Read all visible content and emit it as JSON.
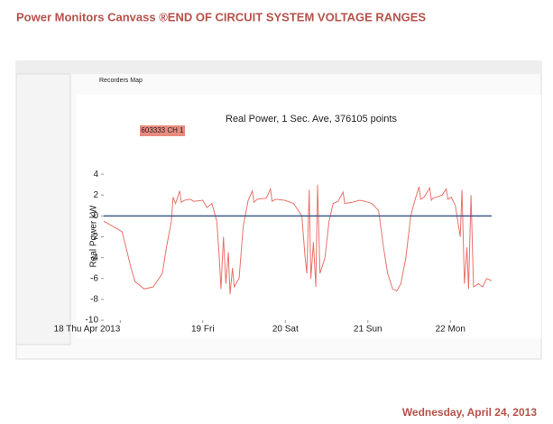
{
  "header": {
    "title": "Power Monitors Canvass ®END OF CIRCUIT SYSTEM VOLTAGE RANGES"
  },
  "footer": {
    "date": "Wednesday, April 24, 2013"
  },
  "app": {
    "tab": "Recorders Map"
  },
  "chart_data": {
    "type": "line",
    "title": "Real Power, 1 Sec. Ave, 376105 points",
    "y_label": "Real Power kW",
    "xlim": [
      17.8,
      22.5
    ],
    "ylim": [
      -10,
      6
    ],
    "xticks": [
      {
        "value": 18,
        "label": "18 Thu Apr 2013"
      },
      {
        "value": 19,
        "label": "19 Fri"
      },
      {
        "value": 20,
        "label": "20 Sat"
      },
      {
        "value": 21,
        "label": "21 Sun"
      },
      {
        "value": 22,
        "label": "22 Mon"
      }
    ],
    "yticks": [
      4,
      2,
      0,
      -2,
      -4,
      -6,
      -8,
      -10
    ],
    "reference_line": {
      "value": 0,
      "color": "#3d5a8a"
    },
    "x": [
      17.8,
      17.91,
      18.02,
      18.07,
      18.13,
      18.18,
      18.29,
      18.4,
      18.51,
      18.56,
      18.62,
      18.64,
      18.67,
      18.72,
      18.74,
      18.78,
      18.85,
      18.89,
      19.0,
      19.05,
      19.11,
      19.17,
      19.2,
      19.22,
      19.25,
      19.28,
      19.31,
      19.33,
      19.36,
      19.38,
      19.44,
      19.49,
      19.55,
      19.6,
      19.62,
      19.66,
      19.77,
      19.82,
      19.84,
      19.88,
      19.99,
      20.1,
      20.2,
      20.24,
      20.26,
      20.29,
      20.31,
      20.34,
      20.37,
      20.39,
      20.42,
      20.48,
      20.53,
      20.58,
      20.64,
      20.7,
      20.72,
      20.81,
      20.9,
      20.97,
      21.05,
      21.13,
      21.19,
      21.24,
      21.3,
      21.35,
      21.4,
      21.46,
      21.52,
      21.57,
      21.62,
      21.64,
      21.68,
      21.75,
      21.77,
      21.79,
      21.9,
      21.95,
      21.97,
      22.01,
      22.06,
      22.12,
      22.14,
      22.17,
      22.2,
      22.22,
      22.25,
      22.28,
      22.34,
      22.39,
      22.44,
      22.5
    ],
    "series": [
      {
        "name": "603333 CH 1",
        "color": "#e8736a",
        "values": [
          -0.5,
          -1,
          -1.5,
          -3,
          -5,
          -6.3,
          -7,
          -6.8,
          -5.5,
          -3,
          -0.5,
          1.8,
          1.2,
          2.4,
          1.3,
          1.5,
          1.6,
          1.4,
          1.5,
          0.8,
          1.2,
          -0.5,
          -4,
          -7,
          -2,
          -6.5,
          -3.5,
          -7.5,
          -5,
          -6.8,
          -6,
          -1,
          1.5,
          2.4,
          1.3,
          1.6,
          1.7,
          2.6,
          1.4,
          1.6,
          1.5,
          1.2,
          0,
          -4,
          -5.5,
          2.5,
          -6,
          -2.5,
          -6.8,
          3,
          -5.5,
          -4,
          -0.5,
          1.2,
          1.4,
          2.3,
          1.2,
          1.3,
          1.5,
          1.4,
          1.2,
          0.5,
          -3,
          -5.5,
          -7,
          -7.2,
          -6.5,
          -4,
          0,
          1.5,
          2.8,
          1.6,
          1.8,
          2.7,
          1.5,
          1.7,
          2,
          2.6,
          1.6,
          1.8,
          1,
          -2,
          2.5,
          -6.5,
          -3,
          -7,
          2,
          -6.8,
          -6.5,
          -6.8,
          -6,
          -6.2
        ]
      }
    ]
  }
}
